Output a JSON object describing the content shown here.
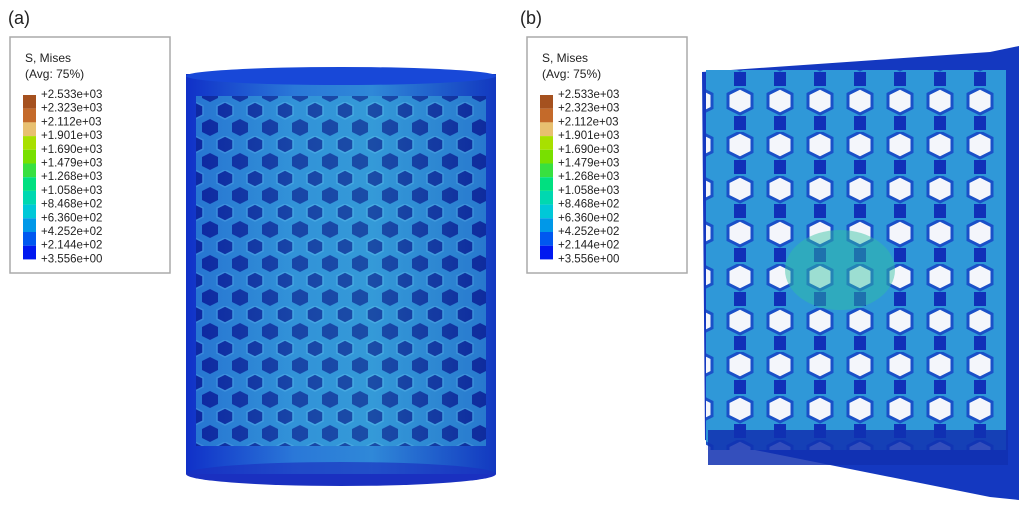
{
  "panels": [
    {
      "label": "(a)",
      "legend": {
        "title": "S, Mises",
        "subtitle": "(Avg: 75%)",
        "labels": [
          "+2.533e+03",
          "+2.323e+03",
          "+2.112e+03",
          "+1.901e+03",
          "+1.690e+03",
          "+1.479e+03",
          "+1.268e+03",
          "+1.058e+03",
          "+8.468e+02",
          "+6.360e+02",
          "+4.252e+02",
          "+2.144e+02",
          "+3.556e+00"
        ],
        "colors": [
          "#a5511f",
          "#c46a2a",
          "#e8c070",
          "#a8e000",
          "#78e000",
          "#38e040",
          "#00e080",
          "#00d8b0",
          "#00c8d8",
          "#0098e8",
          "#0058f0",
          "#0018f0"
        ]
      }
    },
    {
      "label": "(b)",
      "legend": {
        "title": "S, Mises",
        "subtitle": "(Avg: 75%)",
        "labels": [
          "+2.533e+03",
          "+2.323e+03",
          "+2.112e+03",
          "+1.901e+03",
          "+1.690e+03",
          "+1.479e+03",
          "+1.268e+03",
          "+1.058e+03",
          "+8.468e+02",
          "+6.360e+02",
          "+4.252e+02",
          "+2.144e+02",
          "+3.556e+00"
        ],
        "colors": [
          "#a5511f",
          "#c46a2a",
          "#e8c070",
          "#a8e000",
          "#78e000",
          "#38e040",
          "#00e080",
          "#00d8b0",
          "#00c8d8",
          "#0098e8",
          "#0058f0",
          "#0018f0"
        ]
      }
    }
  ]
}
